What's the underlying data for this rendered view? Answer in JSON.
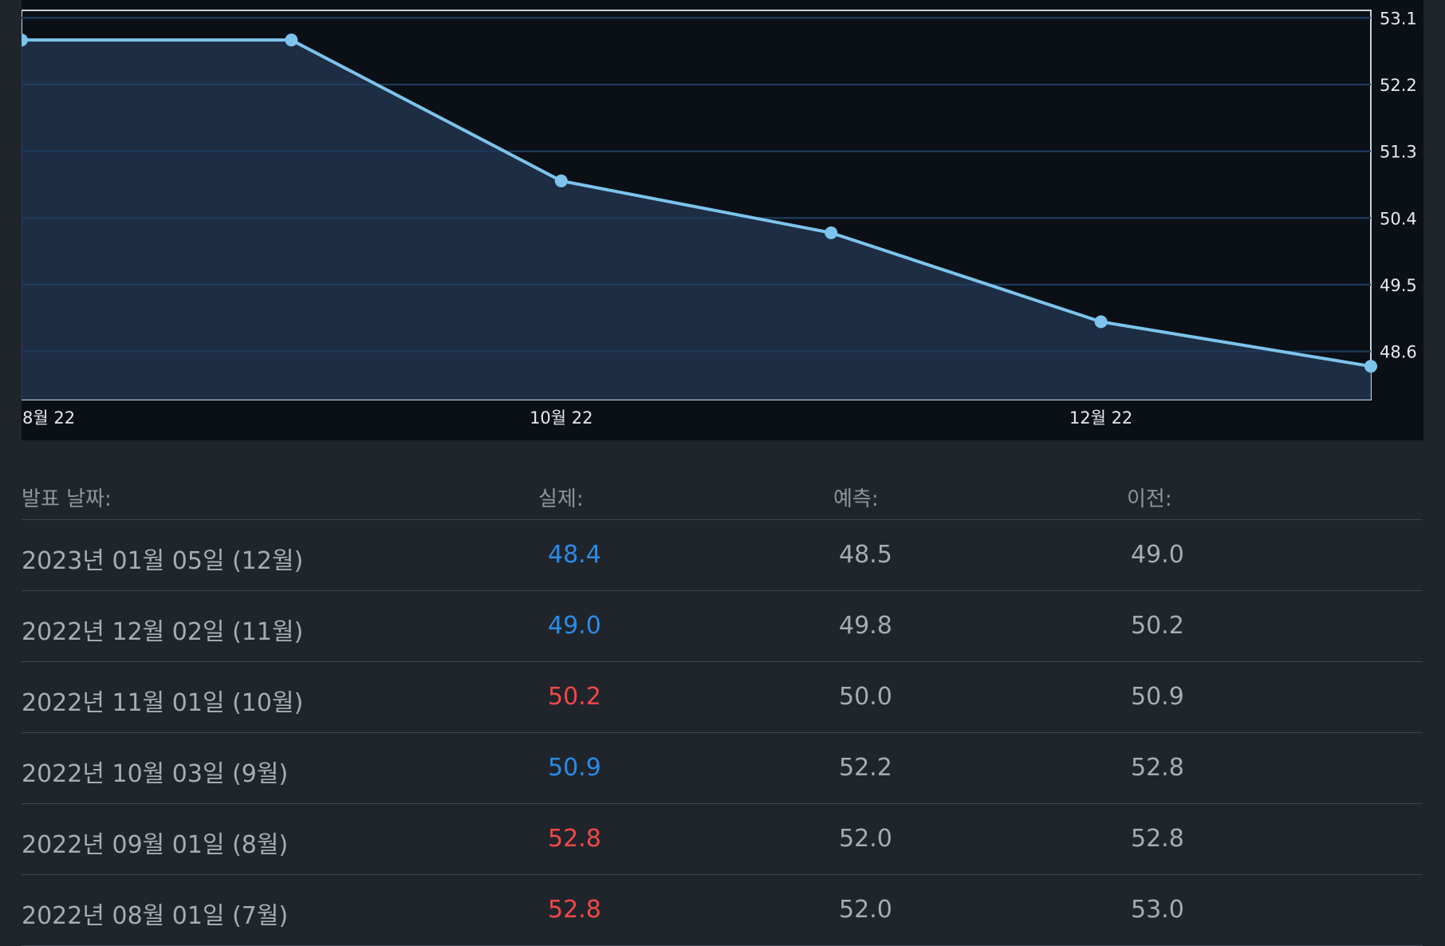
{
  "colors": {
    "background": "#20252b",
    "chart_background": "#0b1017",
    "line": "#7cc4ec",
    "area_fill": "#203049",
    "grid": "#1e3d5e",
    "text_light": "#e6e9ee",
    "text_muted": "#a6acb3",
    "header_text": "#8e959d",
    "actual_below_forecast": "#2b8be6",
    "actual_above_forecast": "#f04848"
  },
  "chart_data": {
    "type": "area",
    "title": "",
    "xlabel": "",
    "ylabel": "",
    "x_ticks": [
      "8월 22",
      "10월 22",
      "12월 22"
    ],
    "y_ticks": [
      "53.1",
      "52.2",
      "51.3",
      "50.4",
      "49.5",
      "48.6"
    ],
    "ylim": [
      47.95,
      53.2
    ],
    "grid": true,
    "y_axis_position": "right",
    "series": [
      {
        "points": [
          {
            "x": "2022-07",
            "y": 52.8
          },
          {
            "x": "2022-08",
            "y": 52.8
          },
          {
            "x": "2022-09",
            "y": 50.9
          },
          {
            "x": "2022-10",
            "y": 50.2
          },
          {
            "x": "2022-11",
            "y": 49.0
          },
          {
            "x": "2022-12",
            "y": 48.4
          }
        ]
      }
    ]
  },
  "table": {
    "headers": {
      "date": "발표 날짜:",
      "actual": "실제:",
      "forecast": "예측:",
      "previous": "이전:"
    },
    "rows": [
      {
        "date": "2023년 01월 05일 (12월)",
        "actual": "48.4",
        "forecast": "48.5",
        "previous": "49.0",
        "actual_status": "below"
      },
      {
        "date": "2022년 12월 02일 (11월)",
        "actual": "49.0",
        "forecast": "49.8",
        "previous": "50.2",
        "actual_status": "below"
      },
      {
        "date": "2022년 11월 01일 (10월)",
        "actual": "50.2",
        "forecast": "50.0",
        "previous": "50.9",
        "actual_status": "above"
      },
      {
        "date": "2022년 10월 03일 (9월)",
        "actual": "50.9",
        "forecast": "52.2",
        "previous": "52.8",
        "actual_status": "below"
      },
      {
        "date": "2022년 09월 01일 (8월)",
        "actual": "52.8",
        "forecast": "52.0",
        "previous": "52.8",
        "actual_status": "above"
      },
      {
        "date": "2022년 08월 01일 (7월)",
        "actual": "52.8",
        "forecast": "52.0",
        "previous": "53.0",
        "actual_status": "above"
      }
    ]
  }
}
